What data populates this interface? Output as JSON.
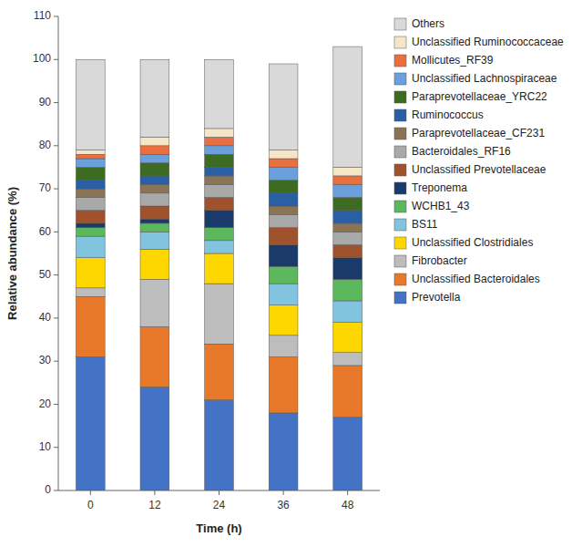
{
  "chart_data": {
    "type": "bar",
    "stacked": true,
    "legend": "right",
    "xlabel": "Time (h)",
    "ylabel": "Relative abundance (%)",
    "categories": [
      "0",
      "12",
      "24",
      "36",
      "48"
    ],
    "ylim": [
      0,
      110
    ],
    "yticks": [
      0,
      10,
      20,
      30,
      40,
      50,
      60,
      70,
      80,
      90,
      100,
      110
    ],
    "series": [
      {
        "name": "Prevotella",
        "color": "#4472C4",
        "values": [
          31,
          24,
          21,
          18,
          17
        ]
      },
      {
        "name": "Unclassified Bacteroidales",
        "color": "#E8792A",
        "values": [
          14,
          14,
          13,
          13,
          12
        ]
      },
      {
        "name": "Fibrobacter",
        "color": "#BDBDBD",
        "values": [
          2,
          11,
          14,
          5,
          3
        ]
      },
      {
        "name": "Unclassified Clostridiales",
        "color": "#FFD700",
        "values": [
          7,
          7,
          7,
          7,
          7
        ]
      },
      {
        "name": "BS11",
        "color": "#82C4E0",
        "values": [
          5,
          4,
          3,
          5,
          5
        ]
      },
      {
        "name": "WCHB1_43",
        "color": "#5CB85C",
        "values": [
          2,
          2,
          3,
          4,
          5
        ]
      },
      {
        "name": "Treponema",
        "color": "#1A3A6B",
        "values": [
          1,
          1,
          4,
          5,
          5
        ]
      },
      {
        "name": "Unclassified Prevotellaceae",
        "color": "#A0522D",
        "values": [
          3,
          3,
          3,
          4,
          3
        ]
      },
      {
        "name": "Bacteroidales_RF16",
        "color": "#A9A9A9",
        "values": [
          3,
          3,
          3,
          3,
          3
        ]
      },
      {
        "name": "Paraprevotellaceae_CF231",
        "color": "#8B7355",
        "values": [
          2,
          2,
          2,
          2,
          2
        ]
      },
      {
        "name": "Ruminococcus",
        "color": "#2B5FA5",
        "values": [
          2,
          2,
          2,
          3,
          3
        ]
      },
      {
        "name": "Paraprevotellaceae_YRC22",
        "color": "#3D6B21",
        "values": [
          3,
          3,
          3,
          3,
          3
        ]
      },
      {
        "name": "Unclassified Lachnospiraceae",
        "color": "#6CA0DC",
        "values": [
          2,
          2,
          2,
          3,
          3
        ]
      },
      {
        "name": "Mollicutes_RF39",
        "color": "#E87040",
        "values": [
          1,
          2,
          2,
          2,
          2
        ]
      },
      {
        "name": "Unclassified Ruminococcaceae",
        "color": "#F5E6C8",
        "values": [
          1,
          2,
          2,
          2,
          2
        ]
      },
      {
        "name": "Others",
        "color": "#D9D9D9",
        "values": [
          21,
          18,
          16,
          20,
          28
        ]
      }
    ]
  }
}
